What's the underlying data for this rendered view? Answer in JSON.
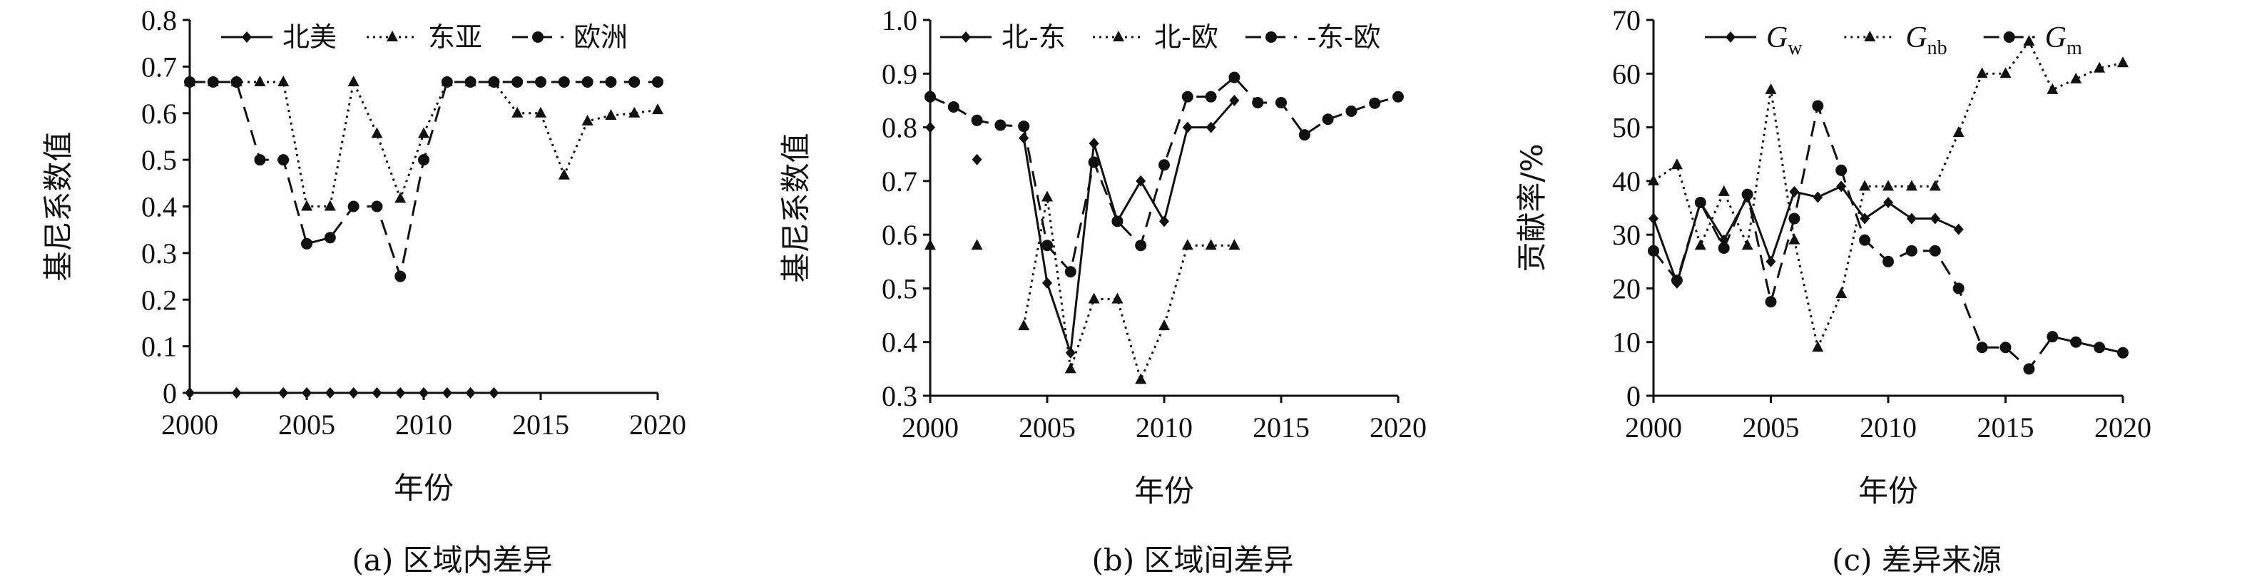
{
  "chart_data": [
    {
      "type": "line",
      "caption": "(a) 区域内差异",
      "xlabel": "年份",
      "ylabel": "基尼系数值",
      "xlim": [
        2000,
        2020
      ],
      "ylim": [
        0,
        0.8
      ],
      "xticks": [
        2000,
        2005,
        2010,
        2015,
        2020
      ],
      "xtick_labels": [
        "2000",
        "2005",
        "2010",
        "2015",
        "2020"
      ],
      "yticks": [
        0,
        0.1,
        0.2,
        0.3,
        0.4,
        0.5,
        0.6,
        0.7,
        0.8
      ],
      "ytick_labels": [
        "0",
        "0.1",
        "0.2",
        "0.3",
        "0.4",
        "0.5",
        "0.6",
        "0.7",
        "0.8"
      ],
      "legend_position": "top",
      "series": [
        {
          "name": "北美",
          "line_style": "solid",
          "marker": "diamond",
          "x": [
            2000,
            2002,
            2004,
            2005,
            2006,
            2007,
            2008,
            2009,
            2010,
            2011,
            2012,
            2013
          ],
          "y": [
            0,
            0,
            0,
            0,
            0,
            0,
            0,
            0,
            0,
            0,
            0,
            0
          ]
        },
        {
          "name": "东亚",
          "line_style": "dotted",
          "marker": "triangle",
          "x": [
            2000,
            2001,
            2002,
            2003,
            2004,
            2005,
            2006,
            2007,
            2008,
            2009,
            2010,
            2011,
            2012,
            2013,
            2014,
            2015,
            2016,
            2017,
            2018,
            2019,
            2020
          ],
          "y": [
            0.667,
            0.667,
            0.667,
            0.667,
            0.667,
            0.4,
            0.4,
            0.667,
            0.556,
            0.417,
            0.556,
            0.667,
            0.667,
            0.667,
            0.6,
            0.6,
            0.467,
            0.583,
            0.595,
            0.6,
            0.607
          ]
        },
        {
          "name": "欧洲",
          "line_style": "dashed",
          "marker": "circle",
          "x": [
            2000,
            2001,
            2002,
            2003,
            2004,
            2005,
            2006,
            2007,
            2008,
            2009,
            2010,
            2011,
            2012,
            2013,
            2014,
            2015,
            2016,
            2017,
            2018,
            2019,
            2020
          ],
          "y": [
            0.667,
            0.667,
            0.667,
            0.5,
            0.5,
            0.32,
            0.333,
            0.4,
            0.4,
            0.25,
            0.5,
            0.667,
            0.667,
            0.667,
            0.667,
            0.667,
            0.667,
            0.667,
            0.667,
            0.667,
            0.667
          ]
        }
      ]
    },
    {
      "type": "line",
      "caption": "(b) 区域间差异",
      "xlabel": "年份",
      "ylabel": "基尼系数值",
      "xlim": [
        2000,
        2020
      ],
      "ylim": [
        0.3,
        1.0
      ],
      "xticks": [
        2000,
        2005,
        2010,
        2015,
        2020
      ],
      "xtick_labels": [
        "2000",
        "2005",
        "2010",
        "2015",
        "2020"
      ],
      "yticks": [
        0.3,
        0.4,
        0.5,
        0.6,
        0.7,
        0.8,
        0.9,
        1.0
      ],
      "ytick_labels": [
        "0.3",
        "0.4",
        "0.5",
        "0.6",
        "0.7",
        "0.8",
        "0.9",
        "1.0"
      ],
      "legend_position": "top",
      "series": [
        {
          "name": "北-东",
          "line_style": "solid",
          "marker": "diamond",
          "segments": [
            {
              "x": [
                2000
              ],
              "y": [
                0.8
              ]
            },
            {
              "x": [
                2002
              ],
              "y": [
                0.74
              ]
            },
            {
              "x": [
                2004,
                2005,
                2006,
                2007,
                2008,
                2009,
                2010,
                2011,
                2012,
                2013
              ],
              "y": [
                0.78,
                0.51,
                0.38,
                0.77,
                0.625,
                0.7,
                0.625,
                0.8,
                0.8,
                0.85
              ]
            }
          ]
        },
        {
          "name": "北-欧",
          "line_style": "dotted",
          "marker": "triangle",
          "segments": [
            {
              "x": [
                2000
              ],
              "y": [
                0.58
              ]
            },
            {
              "x": [
                2002
              ],
              "y": [
                0.58
              ]
            },
            {
              "x": [
                2004,
                2005,
                2006,
                2007,
                2008,
                2009,
                2010,
                2011,
                2012,
                2013
              ],
              "y": [
                0.43,
                0.67,
                0.35,
                0.48,
                0.48,
                0.33,
                0.43,
                0.58,
                0.58,
                0.58
              ]
            }
          ]
        },
        {
          "name": "-东-欧",
          "line_style": "dashed",
          "marker": "circle",
          "segments": [
            {
              "x": [
                2000,
                2001,
                2002,
                2003,
                2004,
                2005,
                2006,
                2007,
                2008,
                2009,
                2010,
                2011,
                2012,
                2013,
                2014,
                2015,
                2016,
                2017,
                2018,
                2019,
                2020
              ],
              "y": [
                0.857,
                0.838,
                0.813,
                0.804,
                0.802,
                0.58,
                0.531,
                0.735,
                0.625,
                0.58,
                0.73,
                0.857,
                0.857,
                0.893,
                0.846,
                0.846,
                0.786,
                0.815,
                0.83,
                0.845,
                0.857
              ]
            }
          ]
        }
      ]
    },
    {
      "type": "line",
      "caption": "(c) 差异来源",
      "xlabel": "年份",
      "ylabel": "贡献率/%",
      "xlim": [
        2000,
        2020
      ],
      "ylim": [
        0,
        70
      ],
      "xticks": [
        2000,
        2005,
        2010,
        2015,
        2020
      ],
      "xtick_labels": [
        "2000",
        "2005",
        "2010",
        "2015",
        "2020"
      ],
      "yticks": [
        0,
        10,
        20,
        30,
        40,
        50,
        60,
        70
      ],
      "ytick_labels": [
        "0",
        "10",
        "20",
        "30",
        "40",
        "50",
        "60",
        "70"
      ],
      "legend_position": "top",
      "series": [
        {
          "name": "G",
          "sub": "w",
          "line_style": "solid",
          "marker": "diamond",
          "x": [
            2000,
            2001,
            2002,
            2003,
            2004,
            2005,
            2006,
            2007,
            2008,
            2009,
            2010,
            2011,
            2012,
            2013
          ],
          "y": [
            33,
            21,
            36,
            29,
            37,
            25,
            38,
            37,
            39,
            33,
            36,
            33,
            33,
            31
          ]
        },
        {
          "name": "G",
          "sub": "nb",
          "line_style": "dotted",
          "marker": "triangle",
          "x": [
            2000,
            2001,
            2002,
            2003,
            2004,
            2005,
            2006,
            2007,
            2008,
            2009,
            2010,
            2011,
            2012,
            2013,
            2014,
            2015,
            2016,
            2017,
            2018,
            2019,
            2020
          ],
          "y": [
            40,
            43,
            28,
            38,
            28,
            57,
            29,
            9,
            19,
            39,
            39,
            39,
            39,
            49,
            60,
            60,
            66,
            57,
            59,
            61,
            62
          ]
        },
        {
          "name": "G",
          "sub": "m",
          "line_style": "dashed",
          "marker": "circle",
          "x": [
            2000,
            2001,
            2002,
            2003,
            2004,
            2005,
            2006,
            2007,
            2008,
            2009,
            2010,
            2011,
            2012,
            2013,
            2014,
            2015,
            2016,
            2017,
            2018,
            2019,
            2020
          ],
          "y": [
            27,
            21.5,
            36,
            27.5,
            37.5,
            17.5,
            33,
            54,
            42,
            29,
            25,
            27,
            27,
            20,
            9,
            9,
            5,
            11,
            10,
            9,
            8
          ]
        }
      ]
    }
  ]
}
